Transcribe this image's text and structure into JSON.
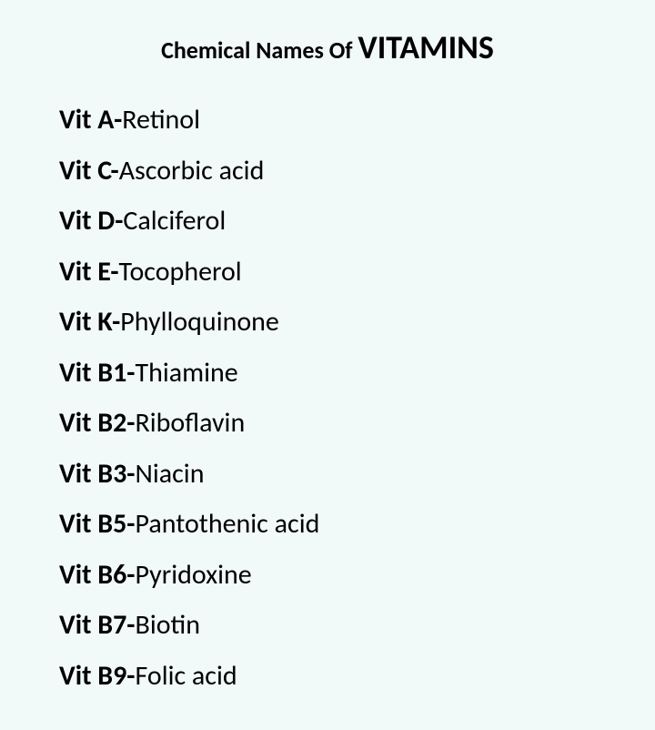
{
  "title": {
    "prefix": "Chemical Names Of ",
    "main": "VITAMINS"
  },
  "items": [
    {
      "label": "Vit A-",
      "value": "Retinol"
    },
    {
      "label": "Vit C-",
      "value": "Ascorbic acid"
    },
    {
      "label": "Vit D-",
      "value": "Calciferol"
    },
    {
      "label": "Vit E-",
      "value": "Tocopherol"
    },
    {
      "label": "Vit K-",
      "value": "Phylloquinone"
    },
    {
      "label": "Vit B1-",
      "value": "Thiamine"
    },
    {
      "label": "Vit B2-",
      "value": "Riboflavin"
    },
    {
      "label": "Vit B3-",
      "value": "Niacin"
    },
    {
      "label": "Vit B5-",
      "value": "Pantothenic acid"
    },
    {
      "label": "Vit B6-",
      "value": "Pyridoxine"
    },
    {
      "label": "Vit B7-",
      "value": "Biotin"
    },
    {
      "label": "Vit B9-",
      "value": "Folic acid"
    }
  ],
  "styling": {
    "background_color": "#f2f9f9",
    "text_color": "#000000",
    "title_prefix_fontsize": 26,
    "title_main_fontsize": 36,
    "item_fontsize": 30,
    "line_height": 1.85,
    "font_family": "Calibri, Arial, sans-serif"
  }
}
